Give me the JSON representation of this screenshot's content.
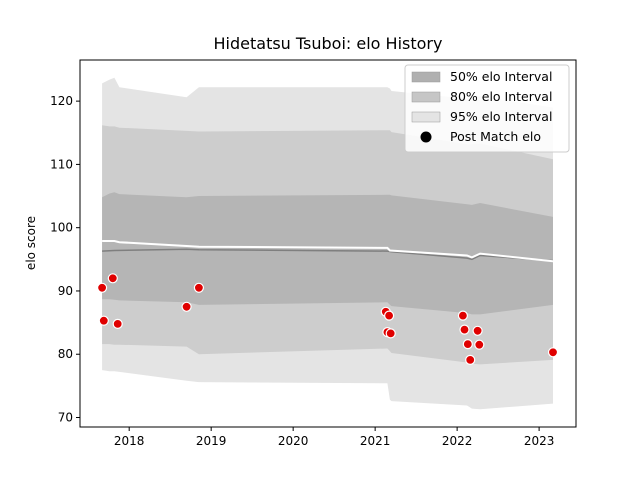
{
  "chart_data": {
    "type": "area",
    "title": "Hidetatsu Tsuboi: elo History",
    "xlabel": "",
    "ylabel": "elo score",
    "xlim": [
      2017.4,
      2023.45
    ],
    "ylim": [
      68.5,
      126.5
    ],
    "x_ticks": [
      2018,
      2019,
      2020,
      2021,
      2022,
      2023
    ],
    "y_ticks": [
      70,
      80,
      90,
      100,
      110,
      120
    ],
    "grid": false,
    "legend_position": "top-right",
    "legend": [
      {
        "label": "50% elo Interval",
        "kind": "band",
        "color": "#b0b0b0"
      },
      {
        "label": "80% elo Interval",
        "kind": "band",
        "color": "#c6c6c6"
      },
      {
        "label": "95% elo Interval",
        "kind": "band",
        "color": "#e4e4e4"
      },
      {
        "label": "Post Match elo",
        "kind": "marker",
        "color": "#000000"
      }
    ],
    "bands": {
      "x": [
        2017.67,
        2017.76,
        2017.82,
        2017.88,
        2018.7,
        2018.85,
        2021.15,
        2021.18,
        2021.2,
        2022.12,
        2022.18,
        2022.28,
        2023.17
      ],
      "p95_upper": [
        122.8,
        123.4,
        123.7,
        122.2,
        120.6,
        122.2,
        122.2,
        122.0,
        121.6,
        120.4,
        120.6,
        120.8,
        119.0
      ],
      "p95_lower": [
        77.5,
        77.3,
        77.3,
        77.2,
        75.8,
        75.6,
        75.4,
        72.8,
        72.6,
        71.9,
        71.4,
        71.3,
        72.2
      ],
      "p80_upper": [
        116.2,
        116.0,
        116.0,
        115.8,
        115.3,
        115.2,
        115.4,
        115.4,
        115.1,
        113.2,
        113.2,
        113.3,
        110.8
      ],
      "p80_lower": [
        81.6,
        81.6,
        81.5,
        81.5,
        81.2,
        80.0,
        80.9,
        80.5,
        80.2,
        78.7,
        78.5,
        78.4,
        79.1
      ],
      "p50_upper": [
        104.8,
        105.4,
        105.6,
        105.3,
        104.8,
        105.0,
        105.2,
        105.2,
        105.1,
        103.7,
        103.6,
        103.9,
        101.7
      ],
      "p50_lower": [
        88.7,
        88.7,
        88.6,
        88.5,
        88.2,
        87.8,
        88.2,
        87.8,
        87.6,
        86.5,
        86.3,
        86.3,
        87.8
      ]
    },
    "mean_line": {
      "color": "#7f7f7f",
      "x": [
        2017.67,
        2017.82,
        2018.7,
        2018.85,
        2021.15,
        2021.2,
        2022.12,
        2022.18,
        2022.28,
        2023.17
      ],
      "y": [
        96.3,
        96.4,
        96.6,
        96.5,
        96.3,
        96.2,
        95.2,
        95.0,
        95.6,
        94.8
      ]
    },
    "median_line": {
      "color": "#ffffff",
      "x": [
        2017.67,
        2017.82,
        2017.88,
        2018.7,
        2018.85,
        2021.15,
        2021.18,
        2022.12,
        2022.18,
        2022.28,
        2023.17
      ],
      "y": [
        97.9,
        97.9,
        97.7,
        97.1,
        97.0,
        96.8,
        96.4,
        95.6,
        95.3,
        95.9,
        94.7
      ]
    },
    "points": {
      "name": "Post Match elo",
      "color": "#e00000",
      "x": [
        2017.67,
        2017.69,
        2017.8,
        2017.86,
        2018.7,
        2018.85,
        2021.13,
        2021.15,
        2021.17,
        2021.19,
        2022.07,
        2022.09,
        2022.13,
        2022.16,
        2022.25,
        2022.27,
        2023.17
      ],
      "y": [
        90.5,
        85.3,
        92.0,
        84.8,
        87.5,
        90.5,
        86.7,
        83.5,
        86.1,
        83.3,
        86.1,
        83.9,
        81.6,
        79.1,
        83.7,
        81.5,
        80.3
      ]
    }
  }
}
